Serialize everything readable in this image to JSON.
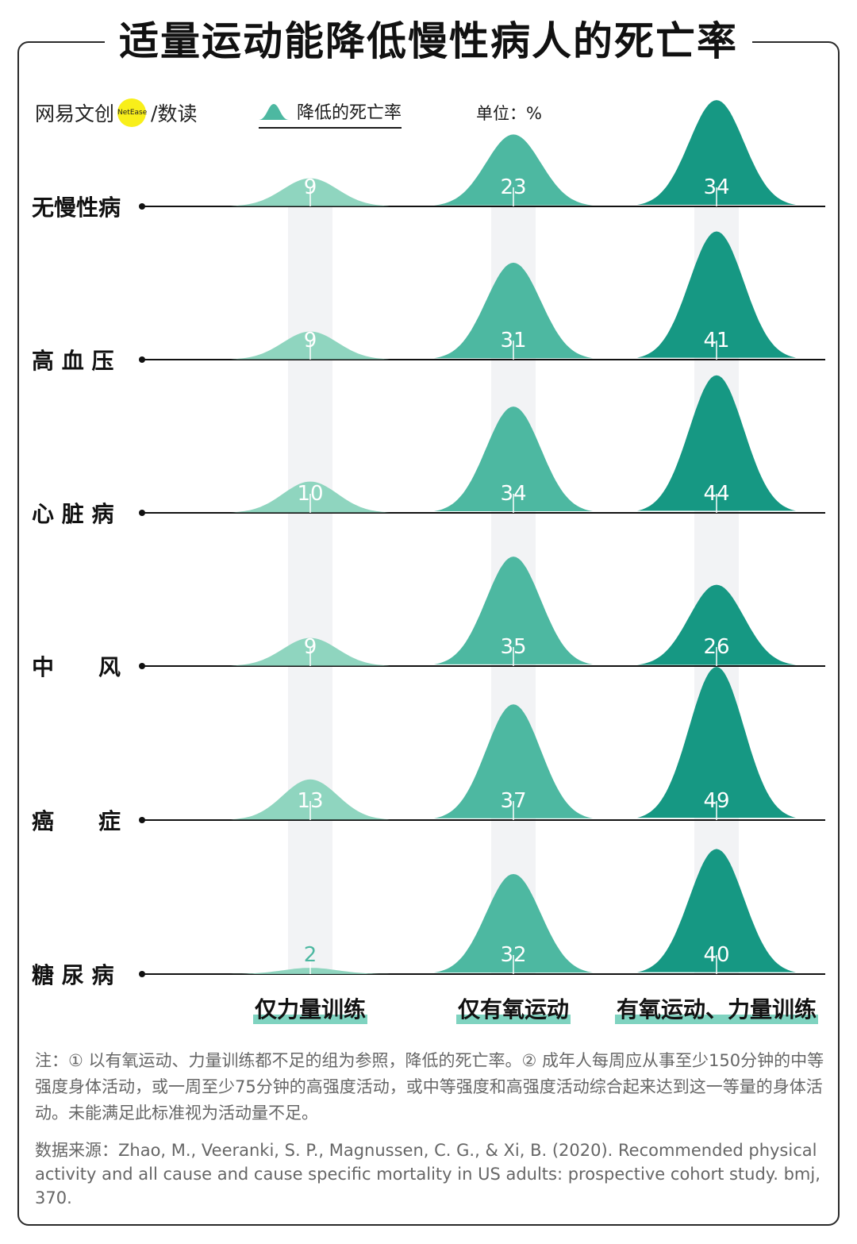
{
  "title": "适量运动能降低慢性病人的死亡率",
  "brand": {
    "left": "网易文创",
    "badge": "NetEase",
    "slash": "/",
    "right": "数读"
  },
  "legend": {
    "label": "降低的死亡率",
    "unit": "单位：%"
  },
  "colors": {
    "strength": "#8fd5bf",
    "aerobic": "#4db8a1",
    "both": "#169883",
    "column_bg": "#f2f3f5",
    "axis": "#111111"
  },
  "chart_data": {
    "type": "ridgeline",
    "title": "适量运动能降低慢性病人的死亡率",
    "unit": "%",
    "categories": [
      "无慢性病",
      "高 血 压",
      "心 脏 病",
      "中　　风",
      "癌　　症",
      "糖 尿 病"
    ],
    "groups": [
      "仅力量训练",
      "仅有氧运动",
      "有氧运动、力量训练"
    ],
    "series": [
      {
        "name": "仅力量训练",
        "values": [
          9,
          9,
          10,
          9,
          13,
          2
        ]
      },
      {
        "name": "仅有氧运动",
        "values": [
          23,
          31,
          34,
          35,
          37,
          32
        ]
      },
      {
        "name": "有氧运动、力量训练",
        "values": [
          34,
          41,
          44,
          26,
          49,
          40
        ]
      }
    ]
  },
  "notes": "注：① 以有氧运动、力量训练都不足的组为参照，降低的死亡率。② 成年人每周应从事至少150分钟的中等强度身体活动，或一周至少75分钟的高强度活动，或中等强度和高强度活动综合起来达到这一等量的身体活动。未能满足此标准视为活动量不足。",
  "source": "数据来源：Zhao, M., Veeranki, S. P., Magnussen, C. G., & Xi, B. (2020). Recommended physical activity and all cause and cause specific mortality in US adults: prospective cohort study. bmj, 370."
}
